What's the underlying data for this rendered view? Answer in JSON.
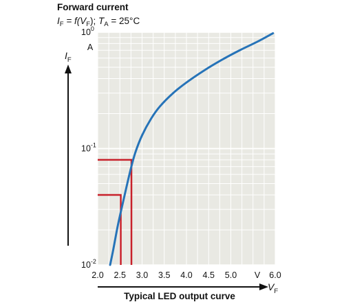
{
  "header": {
    "title": "Forward current",
    "subtitle": {
      "lhs_var": "I",
      "lhs_sub": "F",
      "eq_mid": " = f(",
      "rhs_var": "V",
      "rhs_sub": "F",
      "eq_end": "); ",
      "cond_var": "T",
      "cond_sub": "A",
      "cond_value": " = 25°C"
    }
  },
  "footer": {
    "caption": "Typical LED output curve"
  },
  "chart_data": {
    "type": "line",
    "title": "Forward current",
    "xlabel": {
      "var": "V",
      "sub": "F",
      "unit": "V"
    },
    "ylabel": {
      "var": "I",
      "sub": "F",
      "unit": "A"
    },
    "xlim": [
      2.0,
      6.0
    ],
    "ylim": [
      0.01,
      1.0
    ],
    "yscale": "log",
    "grid": true,
    "x_ticks": [
      2.0,
      2.5,
      3.0,
      3.5,
      4.0,
      4.5,
      5.0,
      6.0
    ],
    "x_tick_labels": [
      "2.0",
      "2.5",
      "3.0",
      "3.5",
      "4.0",
      "4.5",
      "5.0",
      "6.0"
    ],
    "y_ticks": [
      {
        "value": 1.0,
        "base": "10",
        "exp": "0"
      },
      {
        "value": 0.1,
        "base": "10",
        "exp": "-1"
      },
      {
        "value": 0.01,
        "base": "10",
        "exp": "-2"
      }
    ],
    "colors": {
      "curve": "#2673b8",
      "markers": "#c8202a",
      "plot_bg": "#e9e9e3",
      "grid": "#ffffff"
    },
    "series": [
      {
        "x": [
          2.28,
          2.35,
          2.45,
          2.55,
          2.65,
          2.75,
          2.85,
          3.0,
          3.2,
          3.4,
          3.7,
          4.0,
          4.4,
          4.8,
          5.2,
          5.6,
          5.95
        ],
        "y": [
          0.01,
          0.0135,
          0.0215,
          0.032,
          0.047,
          0.068,
          0.093,
          0.13,
          0.18,
          0.23,
          0.3,
          0.37,
          0.47,
          0.58,
          0.7,
          0.83,
          0.98
        ]
      }
    ],
    "markers": [
      {
        "x": 2.76,
        "y": 0.08
      },
      {
        "x": 2.52,
        "y": 0.04
      }
    ]
  }
}
